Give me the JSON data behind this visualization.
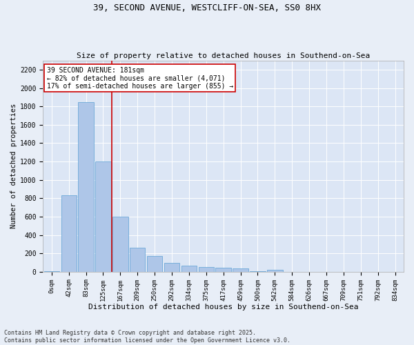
{
  "title1": "39, SECOND AVENUE, WESTCLIFF-ON-SEA, SS0 8HX",
  "title2": "Size of property relative to detached houses in Southend-on-Sea",
  "xlabel": "Distribution of detached houses by size in Southend-on-Sea",
  "ylabel": "Number of detached properties",
  "bar_labels": [
    "0sqm",
    "42sqm",
    "83sqm",
    "125sqm",
    "167sqm",
    "209sqm",
    "250sqm",
    "292sqm",
    "334sqm",
    "375sqm",
    "417sqm",
    "459sqm",
    "500sqm",
    "542sqm",
    "584sqm",
    "626sqm",
    "667sqm",
    "709sqm",
    "751sqm",
    "792sqm",
    "834sqm"
  ],
  "bar_values": [
    5,
    830,
    1850,
    1200,
    600,
    260,
    170,
    100,
    70,
    50,
    45,
    40,
    5,
    20,
    0,
    0,
    0,
    0,
    0,
    0,
    0
  ],
  "bar_color": "#aec6e8",
  "bar_edge_color": "#5a9fd4",
  "vline_x": 4.0,
  "vline_color": "#cc0000",
  "annotation_text": "39 SECOND AVENUE: 181sqm\n← 82% of detached houses are smaller (4,071)\n17% of semi-detached houses are larger (855) →",
  "annotation_box_color": "#ffffff",
  "annotation_box_edge": "#cc0000",
  "ylim": [
    0,
    2300
  ],
  "yticks": [
    0,
    200,
    400,
    600,
    800,
    1000,
    1200,
    1400,
    1600,
    1800,
    2000,
    2200
  ],
  "footer_text": "Contains HM Land Registry data © Crown copyright and database right 2025.\nContains public sector information licensed under the Open Government Licence v3.0.",
  "bg_color": "#e8eef7",
  "plot_bg_color": "#dce6f5",
  "grid_color": "#ffffff"
}
